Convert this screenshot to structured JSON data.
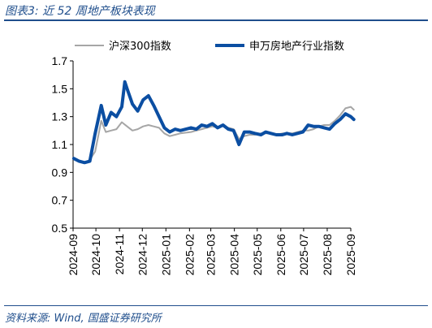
{
  "figure": {
    "title": "图表3:  近 52 周地产板块表现",
    "source": "资料来源:  Wind,  国盛证券研究所"
  },
  "colors": {
    "accent": "#1f4e8c",
    "series_gray": "#a6a6a6",
    "series_blue": "#0b4ea2"
  },
  "chart_data": {
    "type": "line",
    "title": "近 52 周地产板块表现",
    "xlabel": "",
    "ylabel": "",
    "ylim": [
      0.5,
      1.7
    ],
    "yticks": [
      "0.5",
      "0.7",
      "0.9",
      "1.1",
      "1.3",
      "1.5",
      "1.7"
    ],
    "x_ticks": [
      "2024-09",
      "2024-10",
      "2024-11",
      "2024-12",
      "2025-01",
      "2025-02",
      "2025-03",
      "2025-04",
      "2025-05",
      "2025-06",
      "2025-07",
      "2025-08",
      "2025-09"
    ],
    "grid": false,
    "legend": "top",
    "series": [
      {
        "name": "沪深300指数",
        "color": "#a6a6a6",
        "points": [
          [
            "2024-09-02",
            1.0
          ],
          [
            "2024-09-09",
            0.98
          ],
          [
            "2024-09-16",
            0.97
          ],
          [
            "2024-09-23",
            0.99
          ],
          [
            "2024-09-30",
            1.05
          ],
          [
            "2024-10-08",
            1.27
          ],
          [
            "2024-10-14",
            1.19
          ],
          [
            "2024-10-21",
            1.2
          ],
          [
            "2024-10-28",
            1.21
          ],
          [
            "2024-11-04",
            1.26
          ],
          [
            "2024-11-11",
            1.23
          ],
          [
            "2024-11-18",
            1.2
          ],
          [
            "2024-11-25",
            1.21
          ],
          [
            "2024-12-02",
            1.23
          ],
          [
            "2024-12-09",
            1.24
          ],
          [
            "2024-12-16",
            1.23
          ],
          [
            "2024-12-23",
            1.22
          ],
          [
            "2024-12-30",
            1.18
          ],
          [
            "2025-01-06",
            1.16
          ],
          [
            "2025-01-13",
            1.17
          ],
          [
            "2025-01-20",
            1.18
          ],
          [
            "2025-02-03",
            1.19
          ],
          [
            "2025-02-10",
            1.2
          ],
          [
            "2025-02-17",
            1.21
          ],
          [
            "2025-02-24",
            1.22
          ],
          [
            "2025-03-03",
            1.23
          ],
          [
            "2025-03-10",
            1.22
          ],
          [
            "2025-03-17",
            1.24
          ],
          [
            "2025-03-24",
            1.22
          ],
          [
            "2025-03-31",
            1.21
          ],
          [
            "2025-04-07",
            1.14
          ],
          [
            "2025-04-14",
            1.16
          ],
          [
            "2025-04-21",
            1.17
          ],
          [
            "2025-04-28",
            1.17
          ],
          [
            "2025-05-06",
            1.18
          ],
          [
            "2025-05-12",
            1.18
          ],
          [
            "2025-05-19",
            1.18
          ],
          [
            "2025-05-26",
            1.17
          ],
          [
            "2025-06-03",
            1.18
          ],
          [
            "2025-06-09",
            1.18
          ],
          [
            "2025-06-16",
            1.18
          ],
          [
            "2025-06-23",
            1.19
          ],
          [
            "2025-06-30",
            1.2
          ],
          [
            "2025-07-07",
            1.2
          ],
          [
            "2025-07-14",
            1.21
          ],
          [
            "2025-07-21",
            1.23
          ],
          [
            "2025-07-28",
            1.24
          ],
          [
            "2025-08-04",
            1.24
          ],
          [
            "2025-08-11",
            1.27
          ],
          [
            "2025-08-18",
            1.31
          ],
          [
            "2025-08-25",
            1.36
          ],
          [
            "2025-09-01",
            1.37
          ],
          [
            "2025-09-05",
            1.35
          ]
        ]
      },
      {
        "name": "申万房地产行业指数",
        "color": "#0b4ea2",
        "points": [
          [
            "2024-09-02",
            1.0
          ],
          [
            "2024-09-09",
            0.98
          ],
          [
            "2024-09-16",
            0.97
          ],
          [
            "2024-09-23",
            0.98
          ],
          [
            "2024-09-30",
            1.18
          ],
          [
            "2024-10-08",
            1.38
          ],
          [
            "2024-10-14",
            1.24
          ],
          [
            "2024-10-21",
            1.33
          ],
          [
            "2024-10-28",
            1.3
          ],
          [
            "2024-11-04",
            1.37
          ],
          [
            "2024-11-08",
            1.55
          ],
          [
            "2024-11-11",
            1.5
          ],
          [
            "2024-11-18",
            1.39
          ],
          [
            "2024-11-25",
            1.34
          ],
          [
            "2024-12-02",
            1.42
          ],
          [
            "2024-12-09",
            1.45
          ],
          [
            "2024-12-16",
            1.38
          ],
          [
            "2024-12-23",
            1.3
          ],
          [
            "2024-12-30",
            1.22
          ],
          [
            "2025-01-06",
            1.19
          ],
          [
            "2025-01-13",
            1.21
          ],
          [
            "2025-01-20",
            1.2
          ],
          [
            "2025-02-03",
            1.22
          ],
          [
            "2025-02-10",
            1.21
          ],
          [
            "2025-02-17",
            1.24
          ],
          [
            "2025-02-24",
            1.23
          ],
          [
            "2025-03-03",
            1.25
          ],
          [
            "2025-03-10",
            1.22
          ],
          [
            "2025-03-17",
            1.24
          ],
          [
            "2025-03-24",
            1.21
          ],
          [
            "2025-03-31",
            1.2
          ],
          [
            "2025-04-07",
            1.1
          ],
          [
            "2025-04-14",
            1.19
          ],
          [
            "2025-04-21",
            1.19
          ],
          [
            "2025-04-28",
            1.18
          ],
          [
            "2025-05-06",
            1.17
          ],
          [
            "2025-05-12",
            1.19
          ],
          [
            "2025-05-19",
            1.18
          ],
          [
            "2025-05-26",
            1.17
          ],
          [
            "2025-06-03",
            1.17
          ],
          [
            "2025-06-09",
            1.18
          ],
          [
            "2025-06-16",
            1.17
          ],
          [
            "2025-06-23",
            1.18
          ],
          [
            "2025-06-30",
            1.19
          ],
          [
            "2025-07-07",
            1.24
          ],
          [
            "2025-07-14",
            1.23
          ],
          [
            "2025-07-21",
            1.23
          ],
          [
            "2025-07-28",
            1.22
          ],
          [
            "2025-08-04",
            1.21
          ],
          [
            "2025-08-11",
            1.25
          ],
          [
            "2025-08-18",
            1.28
          ],
          [
            "2025-08-25",
            1.32
          ],
          [
            "2025-09-01",
            1.3
          ],
          [
            "2025-09-05",
            1.28
          ]
        ]
      }
    ]
  }
}
